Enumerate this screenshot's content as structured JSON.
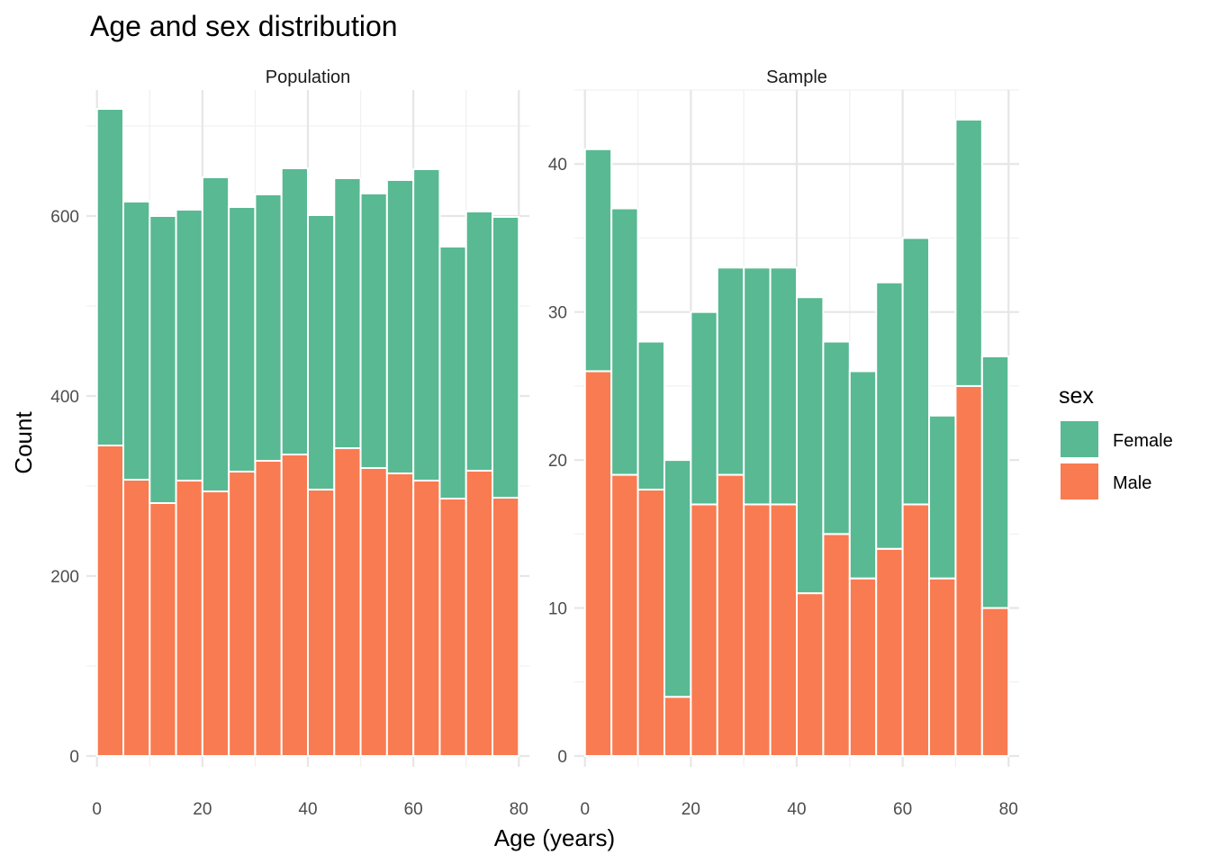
{
  "chart_data": {
    "type": "bar",
    "stacked": true,
    "title": "Age and sex distribution",
    "xlabel": "Age (years)",
    "ylabel": "Count",
    "bin_width": 5,
    "bin_centers": [
      2.5,
      7.5,
      12.5,
      17.5,
      22.5,
      27.5,
      32.5,
      37.5,
      42.5,
      47.5,
      52.5,
      57.5,
      62.5,
      67.5,
      72.5,
      77.5
    ],
    "legend": {
      "title": "sex",
      "position": "right",
      "items": [
        {
          "label": "Female",
          "color": "#58B993"
        },
        {
          "label": "Male",
          "color": "#F97B51"
        }
      ]
    },
    "grid": true,
    "panels": [
      {
        "strip": "Population",
        "xlim": [
          -2,
          82
        ],
        "x_ticks": [
          "0",
          "20",
          "40",
          "60",
          "80"
        ],
        "ylim": [
          0,
          740
        ],
        "y_ticks": [
          "0",
          "200",
          "400",
          "600"
        ],
        "series": [
          {
            "name": "Male",
            "values": [
              345,
              307,
              281,
              306,
              294,
              316,
              328,
              335,
              296,
              342,
              320,
              314,
              306,
              286,
              317,
              287
            ]
          },
          {
            "name": "Female",
            "values": [
              374,
              309,
              319,
              301,
              349,
              294,
              296,
              318,
              305,
              300,
              305,
              326,
              346,
              280,
              288,
              312
            ]
          }
        ]
      },
      {
        "strip": "Sample",
        "xlim": [
          -2,
          82
        ],
        "x_ticks": [
          "0",
          "20",
          "40",
          "60",
          "80"
        ],
        "ylim": [
          0,
          45
        ],
        "y_ticks": [
          "0",
          "10",
          "20",
          "30",
          "40"
        ],
        "series": [
          {
            "name": "Male",
            "values": [
              26,
              19,
              18,
              4,
              17,
              19,
              17,
              17,
              11,
              15,
              12,
              14,
              17,
              12,
              25,
              10
            ]
          },
          {
            "name": "Female",
            "values": [
              15,
              18,
              10,
              16,
              13,
              14,
              16,
              16,
              20,
              13,
              14,
              18,
              18,
              11,
              18,
              17
            ]
          }
        ]
      }
    ]
  }
}
